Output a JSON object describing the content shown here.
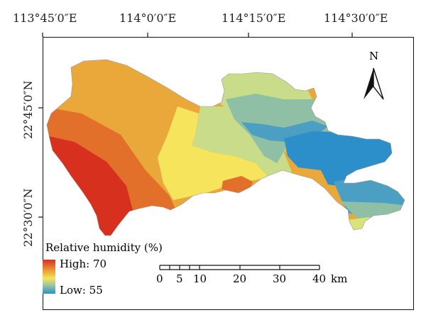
{
  "map": {
    "longitude_labels": [
      "113°45′0″E",
      "114°0′0″E",
      "114°15′0″E",
      "114°30′0″E"
    ],
    "latitude_labels": [
      "22°45′0″N",
      "22°30′0″N"
    ],
    "north_arrow_label": "N",
    "legend": {
      "title": "Relative humidity (%)",
      "high_label": "High: 70",
      "low_label": "Low: 55",
      "high_value": 70,
      "low_value": 55,
      "colors": [
        "#d7301f",
        "#e2702b",
        "#eba83a",
        "#f5e45c",
        "#c8dc8a",
        "#8fc0a6",
        "#4a9fc2",
        "#2d8fc9"
      ]
    },
    "scale_bar": {
      "ticks": [
        "0",
        "5",
        "10",
        "20",
        "30",
        "40"
      ],
      "unit": "km"
    }
  }
}
